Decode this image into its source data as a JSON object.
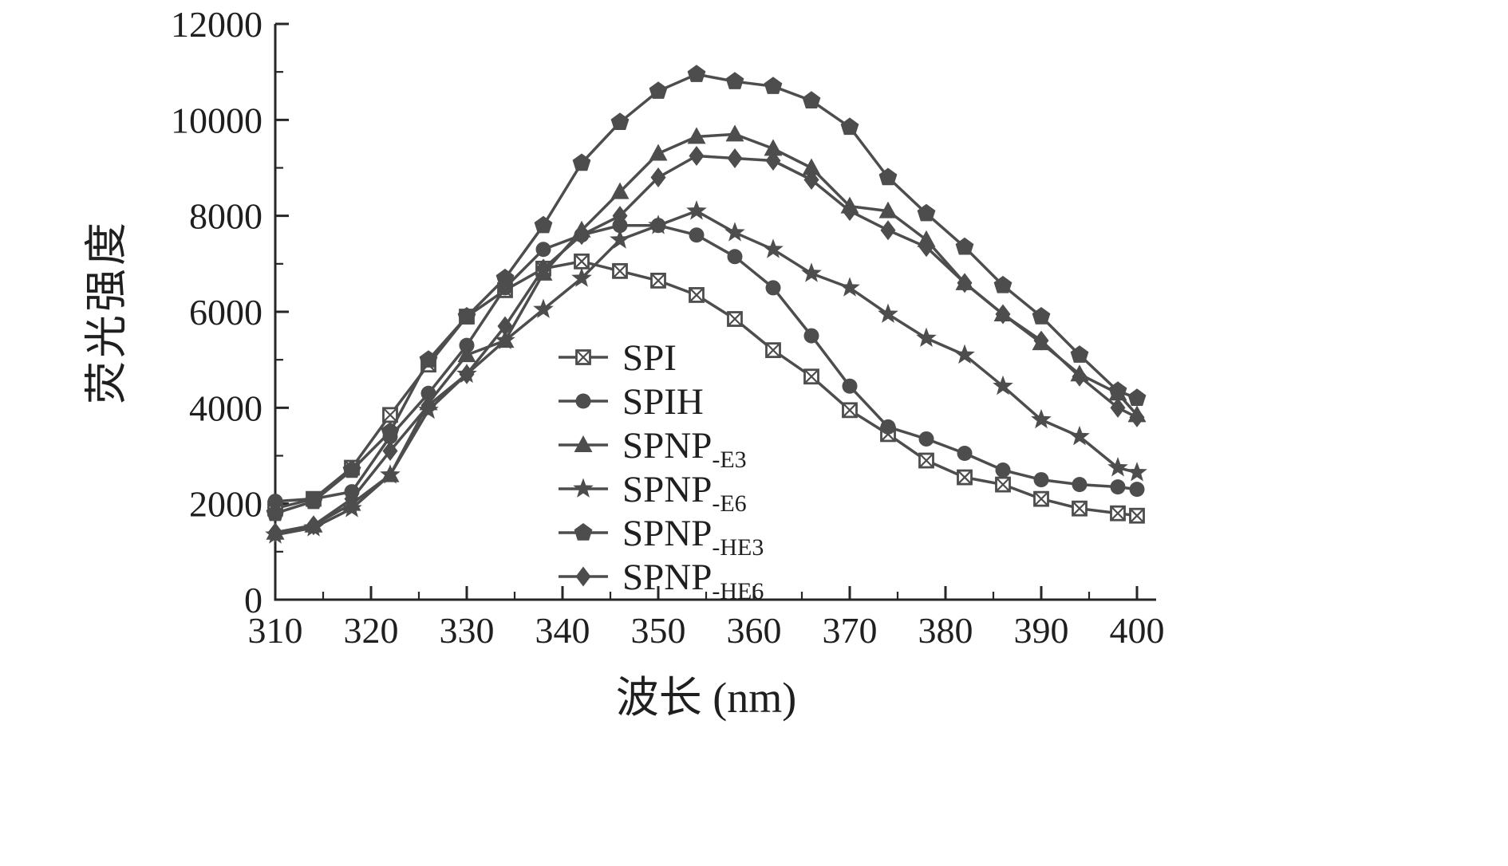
{
  "chart_data": {
    "type": "line",
    "title": "",
    "xlabel": "波长 (nm)",
    "ylabel": "荧光强度",
    "xlim": [
      310,
      402
    ],
    "ylim": [
      0,
      12000
    ],
    "x_major_ticks": [
      310,
      320,
      330,
      340,
      350,
      360,
      370,
      380,
      390,
      400
    ],
    "x_minor_step": 5,
    "y_major_ticks": [
      0,
      2000,
      4000,
      6000,
      8000,
      10000,
      12000
    ],
    "y_minor_step": 1000,
    "grid": false,
    "legend_position": "inside-lower-middle",
    "line_color": "#4d4d4d",
    "axis_color": "#262626",
    "x": [
      310,
      314,
      318,
      322,
      326,
      330,
      334,
      338,
      342,
      346,
      350,
      354,
      358,
      362,
      366,
      370,
      374,
      378,
      382,
      386,
      390,
      394,
      398,
      400
    ],
    "series": [
      {
        "name": "SPI",
        "sub": "",
        "marker": "square-x",
        "values": [
          1900,
          2100,
          2750,
          3850,
          4900,
          5900,
          6450,
          6900,
          7050,
          6850,
          6650,
          6350,
          5850,
          5200,
          4650,
          3950,
          3450,
          2900,
          2550,
          2400,
          2100,
          1900,
          1800,
          1750
        ]
      },
      {
        "name": "SPIH",
        "sub": "",
        "marker": "circle",
        "values": [
          2050,
          2100,
          2250,
          3400,
          4300,
          5300,
          6500,
          7300,
          7600,
          7800,
          7800,
          7600,
          7150,
          6500,
          5500,
          4450,
          3600,
          3350,
          3050,
          2700,
          2500,
          2400,
          2350,
          2300
        ]
      },
      {
        "name": "SPNP",
        "sub": "-E3",
        "marker": "triangle",
        "values": [
          1400,
          1550,
          2000,
          2600,
          4100,
          5100,
          5400,
          6800,
          7700,
          8500,
          9300,
          9650,
          9700,
          9400,
          9000,
          8200,
          8100,
          7500,
          6600,
          5950,
          5350,
          4700,
          4300,
          3850
        ]
      },
      {
        "name": "SPNP",
        "sub": "-E6",
        "marker": "star",
        "values": [
          1350,
          1500,
          1900,
          2600,
          3950,
          4700,
          5400,
          6050,
          6700,
          7500,
          7800,
          8100,
          7650,
          7300,
          6800,
          6500,
          5950,
          5450,
          5100,
          4450,
          3750,
          3400,
          2750,
          2650
        ]
      },
      {
        "name": "SPNP",
        "sub": "-HE3",
        "marker": "pentagon",
        "values": [
          1800,
          2050,
          2700,
          3500,
          5000,
          5900,
          6700,
          7800,
          9100,
          9950,
          10600,
          10950,
          10800,
          10700,
          10400,
          9850,
          8800,
          8050,
          7350,
          6550,
          5900,
          5100,
          4350,
          4200
        ]
      },
      {
        "name": "SPNP",
        "sub": "-HE6",
        "marker": "diamond",
        "values": [
          1400,
          1550,
          2100,
          3100,
          4050,
          4700,
          5700,
          6900,
          7600,
          8000,
          8800,
          9250,
          9200,
          9150,
          8750,
          8100,
          7700,
          7350,
          6600,
          5950,
          5400,
          4650,
          4000,
          3800
        ]
      }
    ]
  }
}
